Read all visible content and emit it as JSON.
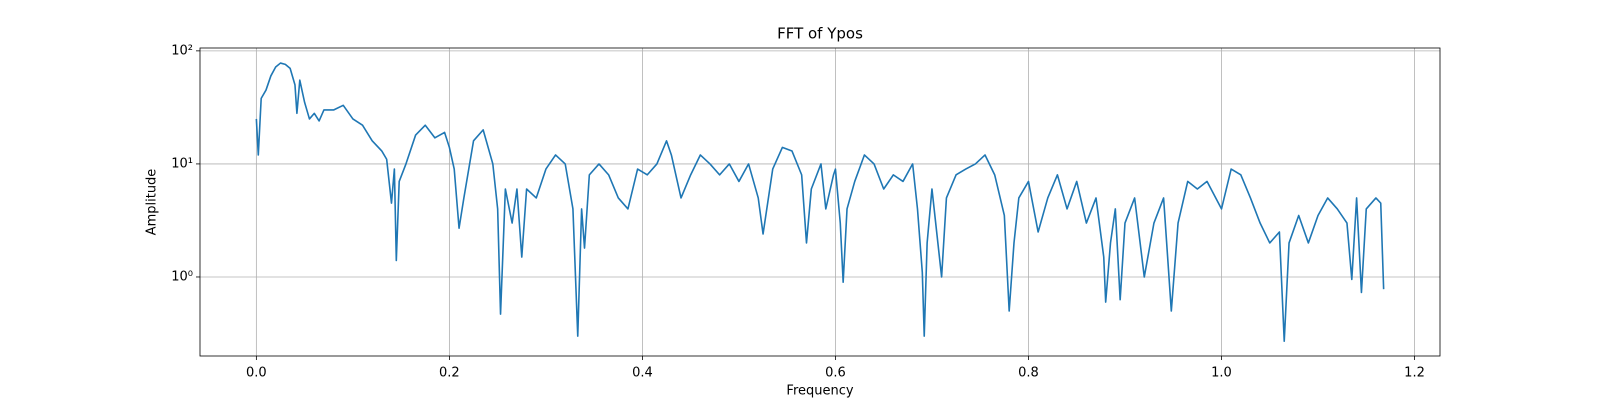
{
  "chart_data": {
    "type": "line",
    "title": "FFT of Ypos",
    "x_label": "Frequency",
    "y_label": "Amplitude",
    "x": [
      0.0,
      0.002,
      0.005,
      0.01,
      0.015,
      0.02,
      0.025,
      0.03,
      0.035,
      0.04,
      0.042,
      0.045,
      0.05,
      0.055,
      0.06,
      0.065,
      0.07,
      0.08,
      0.09,
      0.1,
      0.11,
      0.12,
      0.13,
      0.135,
      0.14,
      0.143,
      0.145,
      0.148,
      0.155,
      0.165,
      0.175,
      0.185,
      0.195,
      0.2,
      0.205,
      0.21,
      0.215,
      0.225,
      0.235,
      0.245,
      0.25,
      0.253,
      0.258,
      0.265,
      0.27,
      0.275,
      0.28,
      0.29,
      0.3,
      0.31,
      0.32,
      0.328,
      0.333,
      0.337,
      0.34,
      0.345,
      0.355,
      0.365,
      0.375,
      0.385,
      0.395,
      0.405,
      0.415,
      0.425,
      0.43,
      0.44,
      0.45,
      0.46,
      0.47,
      0.48,
      0.49,
      0.5,
      0.51,
      0.52,
      0.525,
      0.535,
      0.545,
      0.555,
      0.565,
      0.57,
      0.575,
      0.585,
      0.59,
      0.598,
      0.6,
      0.605,
      0.608,
      0.612,
      0.62,
      0.63,
      0.64,
      0.65,
      0.66,
      0.67,
      0.68,
      0.685,
      0.69,
      0.692,
      0.695,
      0.7,
      0.71,
      0.715,
      0.725,
      0.735,
      0.745,
      0.755,
      0.765,
      0.775,
      0.78,
      0.785,
      0.79,
      0.8,
      0.81,
      0.82,
      0.83,
      0.84,
      0.85,
      0.86,
      0.87,
      0.878,
      0.88,
      0.885,
      0.89,
      0.895,
      0.9,
      0.91,
      0.92,
      0.93,
      0.94,
      0.948,
      0.955,
      0.965,
      0.975,
      0.985,
      1.0,
      1.01,
      1.02,
      1.03,
      1.04,
      1.05,
      1.06,
      1.065,
      1.07,
      1.08,
      1.09,
      1.1,
      1.11,
      1.12,
      1.13,
      1.135,
      1.14,
      1.145,
      1.15,
      1.16,
      1.165,
      1.168
    ],
    "values": [
      25,
      12,
      38,
      45,
      60,
      72,
      78,
      76,
      70,
      50,
      28,
      55,
      35,
      25,
      28,
      24,
      30,
      30,
      33,
      25,
      22,
      16,
      13,
      11,
      4.5,
      9,
      1.4,
      7,
      10,
      18,
      22,
      17,
      19,
      14,
      9,
      2.7,
      5,
      16,
      20,
      10,
      4,
      0.47,
      6,
      3,
      6,
      1.5,
      6,
      5,
      9,
      12,
      10,
      4,
      0.3,
      4,
      1.8,
      8,
      10,
      8,
      5,
      4,
      9,
      8,
      10,
      16,
      12,
      5,
      8,
      12,
      10,
      8,
      10,
      7,
      10,
      5,
      2.4,
      9,
      14,
      13,
      8,
      2.0,
      6,
      10,
      4,
      8,
      9,
      3,
      0.9,
      4,
      7,
      12,
      10,
      6,
      8,
      7,
      10,
      4,
      1.1,
      0.3,
      2,
      6,
      1.0,
      5,
      8,
      9,
      10,
      12,
      8,
      3.5,
      0.5,
      2,
      5,
      7,
      2.5,
      5,
      8,
      4,
      7,
      3,
      5,
      1.5,
      0.6,
      2,
      4,
      0.63,
      3,
      5,
      1.0,
      3,
      5,
      0.5,
      3,
      7,
      6,
      7,
      4,
      9,
      8,
      5,
      3,
      2,
      2.5,
      0.27,
      2,
      3.5,
      2,
      3.5,
      5,
      4,
      3,
      0.95,
      5,
      0.73,
      4,
      5,
      4.5,
      0.78
    ],
    "color": "#1f77b4",
    "xlim": [
      -0.0584,
      1.2264
    ],
    "ylim": [
      0.2,
      106
    ],
    "y_scale": "log",
    "xticks": [
      {
        "value": 0,
        "label": "0.0"
      },
      0.2,
      0.4,
      0.6,
      0.8,
      {
        "value": 1,
        "label": "1.0"
      },
      1.2
    ],
    "yticks": [
      {
        "value": 1,
        "label": "10⁰"
      },
      {
        "value": 10,
        "label": "10¹"
      },
      {
        "value": 100,
        "label": "10²"
      }
    ],
    "grid": true
  }
}
